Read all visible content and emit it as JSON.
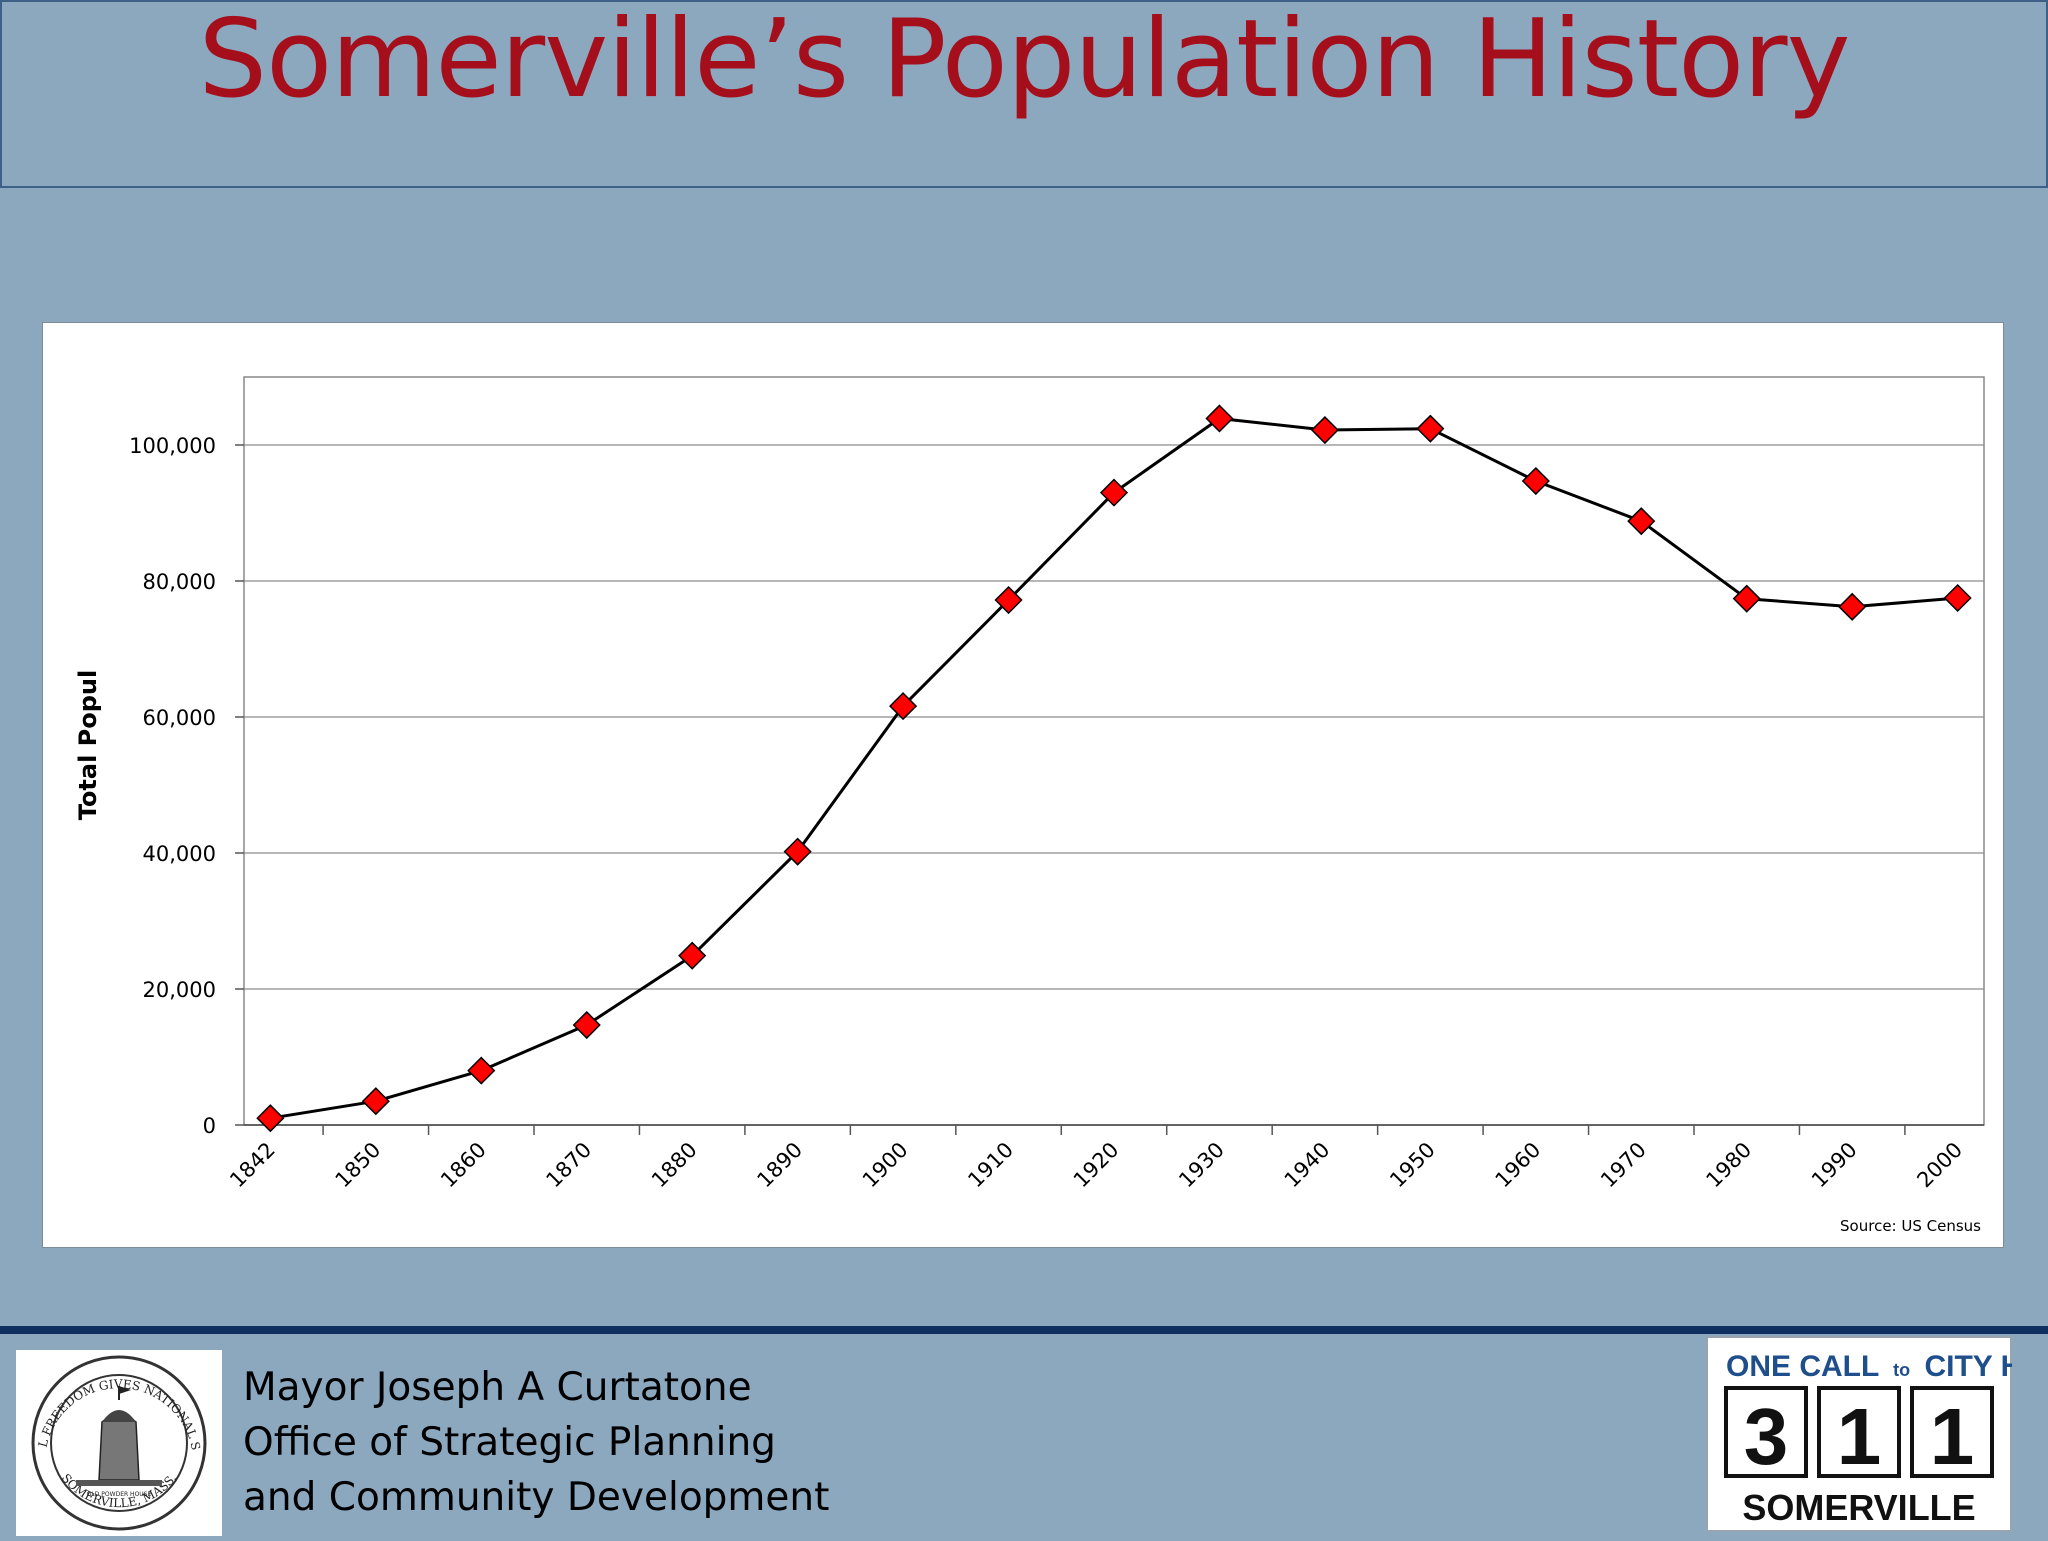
{
  "slide": {
    "title": "Somerville’s Population History"
  },
  "footer": {
    "line1": "Mayor Joseph A Curtatone",
    "line2": "Office of Strategic Planning",
    "line3": "and Community Development",
    "seal_text_top": "MUNICIPAL FREEDOM GIVES NATIONAL STRENGTH",
    "seal_text_bottom": "SOMERVILLE, MASS.",
    "seal_caption": "OLD POWDER HOUSE",
    "logo_line1": "ONE CALL",
    "logo_to": "to",
    "logo_line1b": "CITY HALL",
    "logo_digits": [
      "3",
      "1",
      "1"
    ],
    "logo_line3": "SOMERVILLE"
  },
  "colors": {
    "background": "#8ba8bf",
    "title": "#a50f1c",
    "marker": "#ff0000",
    "line": "#000000",
    "footer_rule": "#0f2f60"
  },
  "chart_data": {
    "type": "line",
    "title": "",
    "xlabel": "",
    "ylabel": "Total Popul",
    "categories": [
      "1842",
      "1850",
      "1860",
      "1870",
      "1880",
      "1890",
      "1900",
      "1910",
      "1920",
      "1930",
      "1940",
      "1950",
      "1960",
      "1970",
      "1980",
      "1990",
      "2000"
    ],
    "y_ticks": [
      0,
      20000,
      40000,
      60000,
      80000,
      100000
    ],
    "y_tick_labels": [
      "0",
      "20,000",
      "40,000",
      "60,000",
      "80,000",
      "100,000"
    ],
    "ylim": [
      0,
      110000
    ],
    "grid": true,
    "series": [
      {
        "values": [
          1000,
          3500,
          8000,
          14700,
          24900,
          40200,
          61600,
          77200,
          93000,
          103900,
          102200,
          102400,
          94700,
          88800,
          77400,
          76200,
          77500
        ],
        "marker": "diamond"
      }
    ],
    "source": "Source: US Census"
  }
}
